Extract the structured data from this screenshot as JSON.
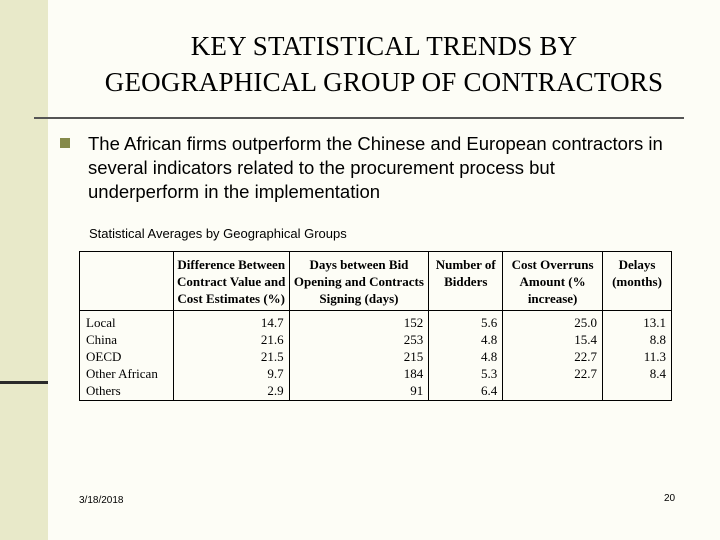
{
  "slide": {
    "title_line1": "KEY STATISTICAL TRENDS BY",
    "title_line2": "GEOGRAPHICAL GROUP OF CONTRACTORS",
    "bullet": "The African firms outperform the Chinese and European contractors in several indicators related to the procurement process but underperform in the implementation",
    "bullet_icon": "square-bullet-icon",
    "accent_color": "#858a4a",
    "band_color": "#e8e9c9"
  },
  "table": {
    "caption": "Statistical Averages by Geographical Groups",
    "headers": [
      "",
      "Difference Between Contract Value and Cost Estimates (%)",
      "Days between Bid Opening and Contracts Signing (days)",
      "Number of Bidders",
      "Cost Overruns Amount (% increase)",
      "Delays (months)"
    ],
    "rows": [
      [
        "Local",
        "14.7",
        "152",
        "5.6",
        "25.0",
        "13.1"
      ],
      [
        "China",
        "21.6",
        "253",
        "4.8",
        "15.4",
        "8.8"
      ],
      [
        "OECD",
        "21.5",
        "215",
        "4.8",
        "22.7",
        "11.3"
      ],
      [
        "Other African",
        "9.7",
        "184",
        "5.3",
        "22.7",
        "8.4"
      ],
      [
        "Others",
        "2.9",
        "91",
        "6.4",
        "",
        ""
      ]
    ]
  },
  "footer": {
    "date": "3/18/2018",
    "page": "20"
  }
}
